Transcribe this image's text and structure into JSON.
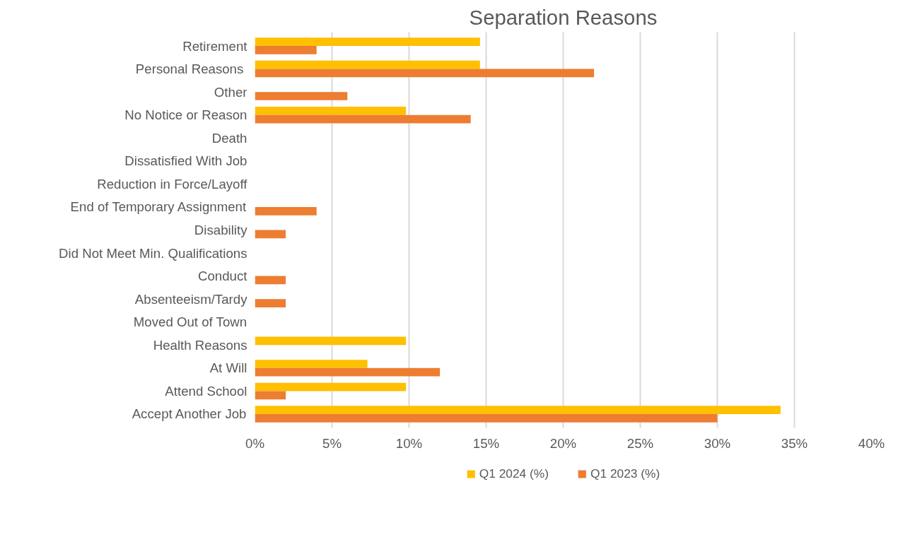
{
  "chart_data": {
    "type": "bar",
    "orientation": "horizontal",
    "title": "Separation Reasons",
    "categories": [
      "Retirement",
      "Personal Reasons ",
      "Other",
      "No Notice or Reason",
      "Death",
      "Dissatisfied With Job",
      "Reduction in Force/Layoff",
      "End of Temporary Assignment",
      "Disability",
      "Did Not Meet Min. Qualifications",
      "Conduct",
      "Absenteeism/Tardy",
      "Moved Out of Town",
      "Health Reasons",
      "At Will",
      "Attend School",
      "Accept Another Job"
    ],
    "series": [
      {
        "name": "Q1 2024 (%)",
        "color": "#ffc000",
        "values": [
          14.6,
          14.6,
          0,
          9.8,
          0,
          0,
          0,
          0,
          0,
          0,
          0,
          0,
          0,
          9.8,
          7.3,
          9.8,
          34.1
        ]
      },
      {
        "name": "Q1 2023 (%)",
        "color": "#ed7d31",
        "values": [
          4,
          22,
          6,
          14,
          0,
          0,
          0,
          4,
          2,
          0,
          2,
          2,
          0,
          0,
          12,
          2,
          30
        ]
      }
    ],
    "xlim": [
      0,
      40
    ],
    "xticks": [
      {
        "value": 0,
        "label": "0%"
      },
      {
        "value": 5,
        "label": "5%"
      },
      {
        "value": 10,
        "label": "10%"
      },
      {
        "value": 15,
        "label": "15%"
      },
      {
        "value": 20,
        "label": "20%"
      },
      {
        "value": 25,
        "label": "25%"
      },
      {
        "value": 30,
        "label": "30%"
      },
      {
        "value": 35,
        "label": "35%"
      },
      {
        "value": 40,
        "label": "40%"
      }
    ],
    "grid": "x",
    "legend": "bottom"
  }
}
